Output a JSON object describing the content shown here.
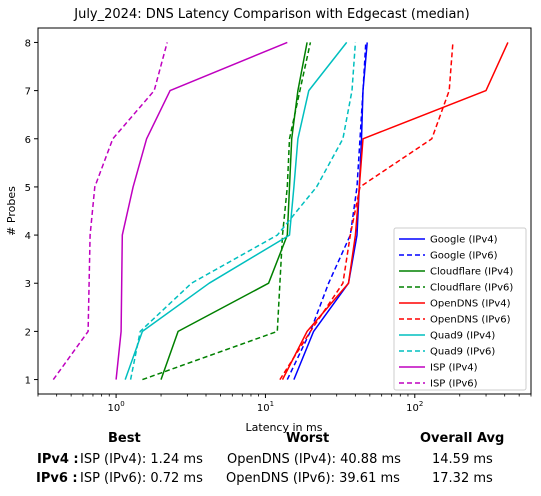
{
  "chart_data": {
    "type": "line",
    "title": "July_2024: DNS Latency Comparison with Edgecast (median)",
    "xlabel": "Latency in ms",
    "ylabel": "# Probes",
    "xscale": "log",
    "xlim": [
      0.3,
      600
    ],
    "ylim": [
      0.7,
      8.3
    ],
    "x_ticks": [
      "10^0",
      "10^1",
      "10^2"
    ],
    "y_ticks": [
      "1",
      "2",
      "3",
      "4",
      "5",
      "6",
      "7",
      "8"
    ],
    "legend_position": "lower-right",
    "y": [
      1,
      2,
      3,
      4,
      5,
      6,
      7,
      8
    ],
    "series": [
      {
        "name": "Google (IPv4)",
        "color": "#0000ff",
        "dash": "solid",
        "x": [
          15.5,
          21,
          36,
          41,
          42.5,
          44,
          45,
          48
        ]
      },
      {
        "name": "Google (IPv6)",
        "color": "#0000ff",
        "dash": "dashed",
        "x": [
          14,
          20,
          26.5,
          37,
          41,
          43,
          45,
          47
        ]
      },
      {
        "name": "Cloudflare (IPv4)",
        "color": "#008000",
        "dash": "solid",
        "x": [
          2,
          2.6,
          10.5,
          14,
          14.5,
          15,
          16.5,
          19
        ]
      },
      {
        "name": "Cloudflare (IPv6)",
        "color": "#008000",
        "dash": "dashed",
        "x": [
          1.5,
          12,
          12.5,
          13,
          14,
          14.5,
          17,
          20
        ]
      },
      {
        "name": "OpenDNS (IPv4)",
        "color": "#ff0000",
        "dash": "solid",
        "x": [
          13,
          19,
          36,
          40,
          42.5,
          45,
          300,
          420
        ]
      },
      {
        "name": "OpenDNS (IPv6)",
        "color": "#ff0000",
        "dash": "dashed",
        "x": [
          12.5,
          20,
          33,
          37,
          43,
          130,
          170,
          180
        ]
      },
      {
        "name": "Quad9 (IPv4)",
        "color": "#00bfbf",
        "dash": "solid",
        "x": [
          1.15,
          1.5,
          4.2,
          14.5,
          15.5,
          16.5,
          19.5,
          35
        ]
      },
      {
        "name": "Quad9 (IPv6)",
        "color": "#00bfbf",
        "dash": "dashed",
        "x": [
          1.25,
          1.45,
          3.2,
          12,
          22,
          33,
          38,
          40
        ]
      },
      {
        "name": "ISP (IPv4)",
        "color": "#bf00bf",
        "dash": "solid",
        "x": [
          1.0,
          1.08,
          1.09,
          1.1,
          1.3,
          1.6,
          2.3,
          14
        ]
      },
      {
        "name": "ISP (IPv6)",
        "color": "#bf00bf",
        "dash": "dashed",
        "x": [
          0.38,
          0.65,
          0.66,
          0.67,
          0.72,
          0.95,
          1.8,
          2.2
        ]
      }
    ]
  },
  "summary": {
    "headers": {
      "best": "Best",
      "worst": "Worst",
      "avg": "Overall Avg"
    },
    "rows": [
      {
        "label": "IPv4 :",
        "best": "ISP (IPv4): 1.24 ms",
        "worst": "OpenDNS (IPv4): 40.88 ms",
        "avg": "14.59 ms"
      },
      {
        "label": "IPv6 :",
        "best": "ISP (IPv6): 0.72 ms",
        "worst": "OpenDNS (IPv6): 39.61 ms",
        "avg": "17.32 ms"
      }
    ]
  }
}
